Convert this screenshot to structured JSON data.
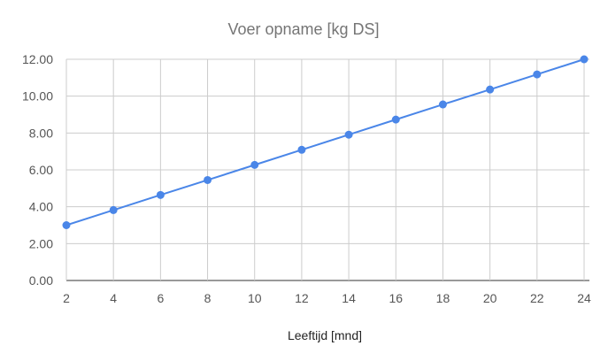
{
  "chart_data": {
    "type": "line",
    "title": "Voer opname [kg DS]",
    "xlabel": "Leeftijd [mnd]",
    "ylabel": "",
    "x": [
      2,
      4,
      6,
      8,
      10,
      12,
      14,
      16,
      18,
      20,
      22,
      24
    ],
    "series": [
      {
        "values": [
          3.0,
          3.82,
          4.64,
          5.45,
          6.27,
          7.09,
          7.91,
          8.73,
          9.55,
          10.36,
          11.18,
          12.0
        ],
        "color": "#4a86e8"
      }
    ],
    "xlim": [
      2,
      24
    ],
    "ylim": [
      0,
      12
    ],
    "x_ticks": [
      "2",
      "4",
      "6",
      "8",
      "10",
      "12",
      "14",
      "16",
      "18",
      "20",
      "22",
      "24"
    ],
    "y_ticks": [
      "0.00",
      "2.00",
      "4.00",
      "6.00",
      "8.00",
      "10.00",
      "12.00"
    ],
    "grid": true,
    "legend": "none"
  }
}
